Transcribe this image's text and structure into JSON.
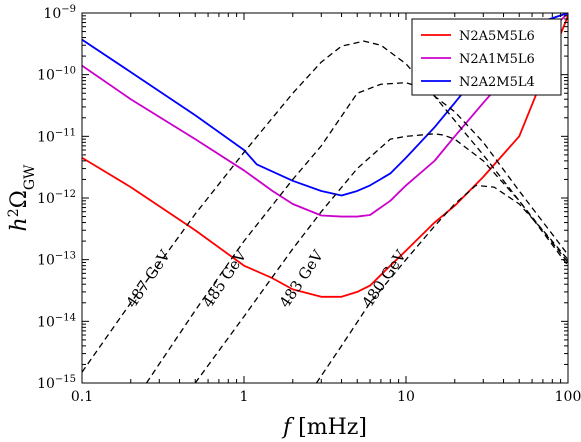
{
  "chart_data": {
    "type": "line",
    "title": "",
    "xlabel": "f [mHz]",
    "ylabel": "h²Ω_GW",
    "xscale": "log",
    "yscale": "log",
    "xlim": [
      0.1,
      100
    ],
    "ylim": [
      1e-15,
      1e-09
    ],
    "grid": false,
    "legend_position": "top-right",
    "x_tick_labels": [
      {
        "value": 0.1,
        "label": "0.1"
      },
      {
        "value": 1,
        "label": "1"
      },
      {
        "value": 10,
        "label": "10"
      },
      {
        "value": 100,
        "label": "100"
      }
    ],
    "y_tick_labels": [
      {
        "value": 1e-15,
        "base": "10",
        "exp": "−15"
      },
      {
        "value": 1e-14,
        "base": "10",
        "exp": "−14"
      },
      {
        "value": 1e-13,
        "base": "10",
        "exp": "−13"
      },
      {
        "value": 1e-12,
        "base": "10",
        "exp": "−12"
      },
      {
        "value": 1e-11,
        "base": "10",
        "exp": "−11"
      },
      {
        "value": 1e-10,
        "base": "10",
        "exp": "−10"
      },
      {
        "value": 1e-09,
        "base": "10",
        "exp": "−9"
      }
    ],
    "series": [
      {
        "name": "N2A5M5L6",
        "color": "#ff0000",
        "style": "solid",
        "x": [
          0.1,
          0.2,
          0.5,
          1,
          1.5,
          2,
          3,
          4,
          5,
          6,
          8,
          10,
          15,
          20,
          30,
          50,
          100
        ],
        "y": [
          4.5e-12,
          1.5e-12,
          3e-13,
          8e-14,
          5e-14,
          3.3e-14,
          2.5e-14,
          2.5e-14,
          3e-14,
          3.8e-14,
          8e-14,
          1.4e-13,
          4e-13,
          7.5e-13,
          2.2e-12,
          1e-11,
          9e-10
        ]
      },
      {
        "name": "N2A1M5L6",
        "color": "#cc00cc",
        "style": "solid",
        "x": [
          0.1,
          0.2,
          0.5,
          1,
          1.5,
          2,
          3,
          4,
          5,
          6,
          8,
          10,
          15,
          20,
          30,
          50,
          100
        ],
        "y": [
          1.4e-10,
          4e-11,
          9e-12,
          2.8e-12,
          1.3e-12,
          8e-13,
          5.2e-13,
          5e-13,
          5e-13,
          5.3e-13,
          9e-13,
          1.6e-12,
          4e-12,
          1e-11,
          3.5e-11,
          1.6e-10,
          1e-09
        ]
      },
      {
        "name": "N2A2M5L4",
        "color": "#0000ff",
        "style": "solid",
        "x": [
          0.1,
          0.2,
          0.5,
          1,
          1.2,
          2,
          3,
          4,
          5,
          6,
          8,
          10,
          15,
          20,
          30,
          50,
          100
        ],
        "y": [
          3.7e-10,
          1.1e-10,
          2.2e-11,
          6e-12,
          3.5e-12,
          1.9e-12,
          1.3e-12,
          1.1e-12,
          1.3e-12,
          1.6e-12,
          2.5e-12,
          4.5e-12,
          1.4e-11,
          3.5e-11,
          1.3e-10,
          5.5e-10,
          1e-09
        ]
      },
      {
        "name": "",
        "label": "487 GeV",
        "color": "#000000",
        "style": "dashed",
        "x": [
          0.1,
          0.2,
          0.5,
          1,
          2,
          3,
          4,
          5.5,
          7,
          10,
          15,
          20,
          30,
          50,
          100
        ],
        "y": [
          1.5e-15,
          2e-14,
          5.5e-13,
          5.5e-12,
          5e-11,
          1.6e-10,
          2.9e-10,
          3.5e-10,
          3e-10,
          1.5e-10,
          4.5e-11,
          1.8e-11,
          5e-12,
          9e-13,
          8e-14
        ]
      },
      {
        "name": "",
        "label": "485 GeV",
        "color": "#000000",
        "style": "dashed",
        "x": [
          0.25,
          0.5,
          1,
          2,
          3,
          5,
          7,
          10,
          13,
          20,
          30,
          50,
          100
        ],
        "y": [
          1e-15,
          1.5e-14,
          2e-13,
          2e-12,
          7e-12,
          5e-11,
          7e-11,
          7.4e-11,
          6e-11,
          2.5e-11,
          8e-12,
          1.3e-12,
          1.2e-13
        ]
      },
      {
        "name": "",
        "label": "483 GeV",
        "color": "#000000",
        "style": "dashed",
        "x": [
          0.5,
          1,
          2,
          3,
          5,
          8,
          10,
          15,
          17,
          20,
          30,
          50,
          100
        ],
        "y": [
          1e-15,
          1.2e-14,
          1.5e-13,
          6e-13,
          3e-12,
          9e-12,
          1e-11,
          1.1e-11,
          1.05e-11,
          9e-12,
          4e-12,
          9e-13,
          9e-14
        ]
      },
      {
        "name": "",
        "label": "480 GeV",
        "color": "#000000",
        "style": "dashed",
        "x": [
          2.8,
          4,
          6,
          10,
          15,
          20,
          27,
          35,
          50,
          70,
          100
        ],
        "y": [
          1e-15,
          4e-15,
          2e-14,
          1e-13,
          3.5e-13,
          8e-13,
          1.6e-12,
          1.5e-12,
          8e-13,
          3e-13,
          1e-13
        ]
      }
    ],
    "annotations": [
      {
        "text": "487 GeV",
        "x": 0.21,
        "y": 1.6e-14,
        "rotation_deg": -56
      },
      {
        "text": "485 GeV",
        "x": 0.62,
        "y": 1.6e-14,
        "rotation_deg": -56
      },
      {
        "text": "483 GeV",
        "x": 1.85,
        "y": 1.6e-14,
        "rotation_deg": -56
      },
      {
        "text": "480 GeV",
        "x": 6.0,
        "y": 1.6e-14,
        "rotation_deg": -56
      }
    ]
  }
}
